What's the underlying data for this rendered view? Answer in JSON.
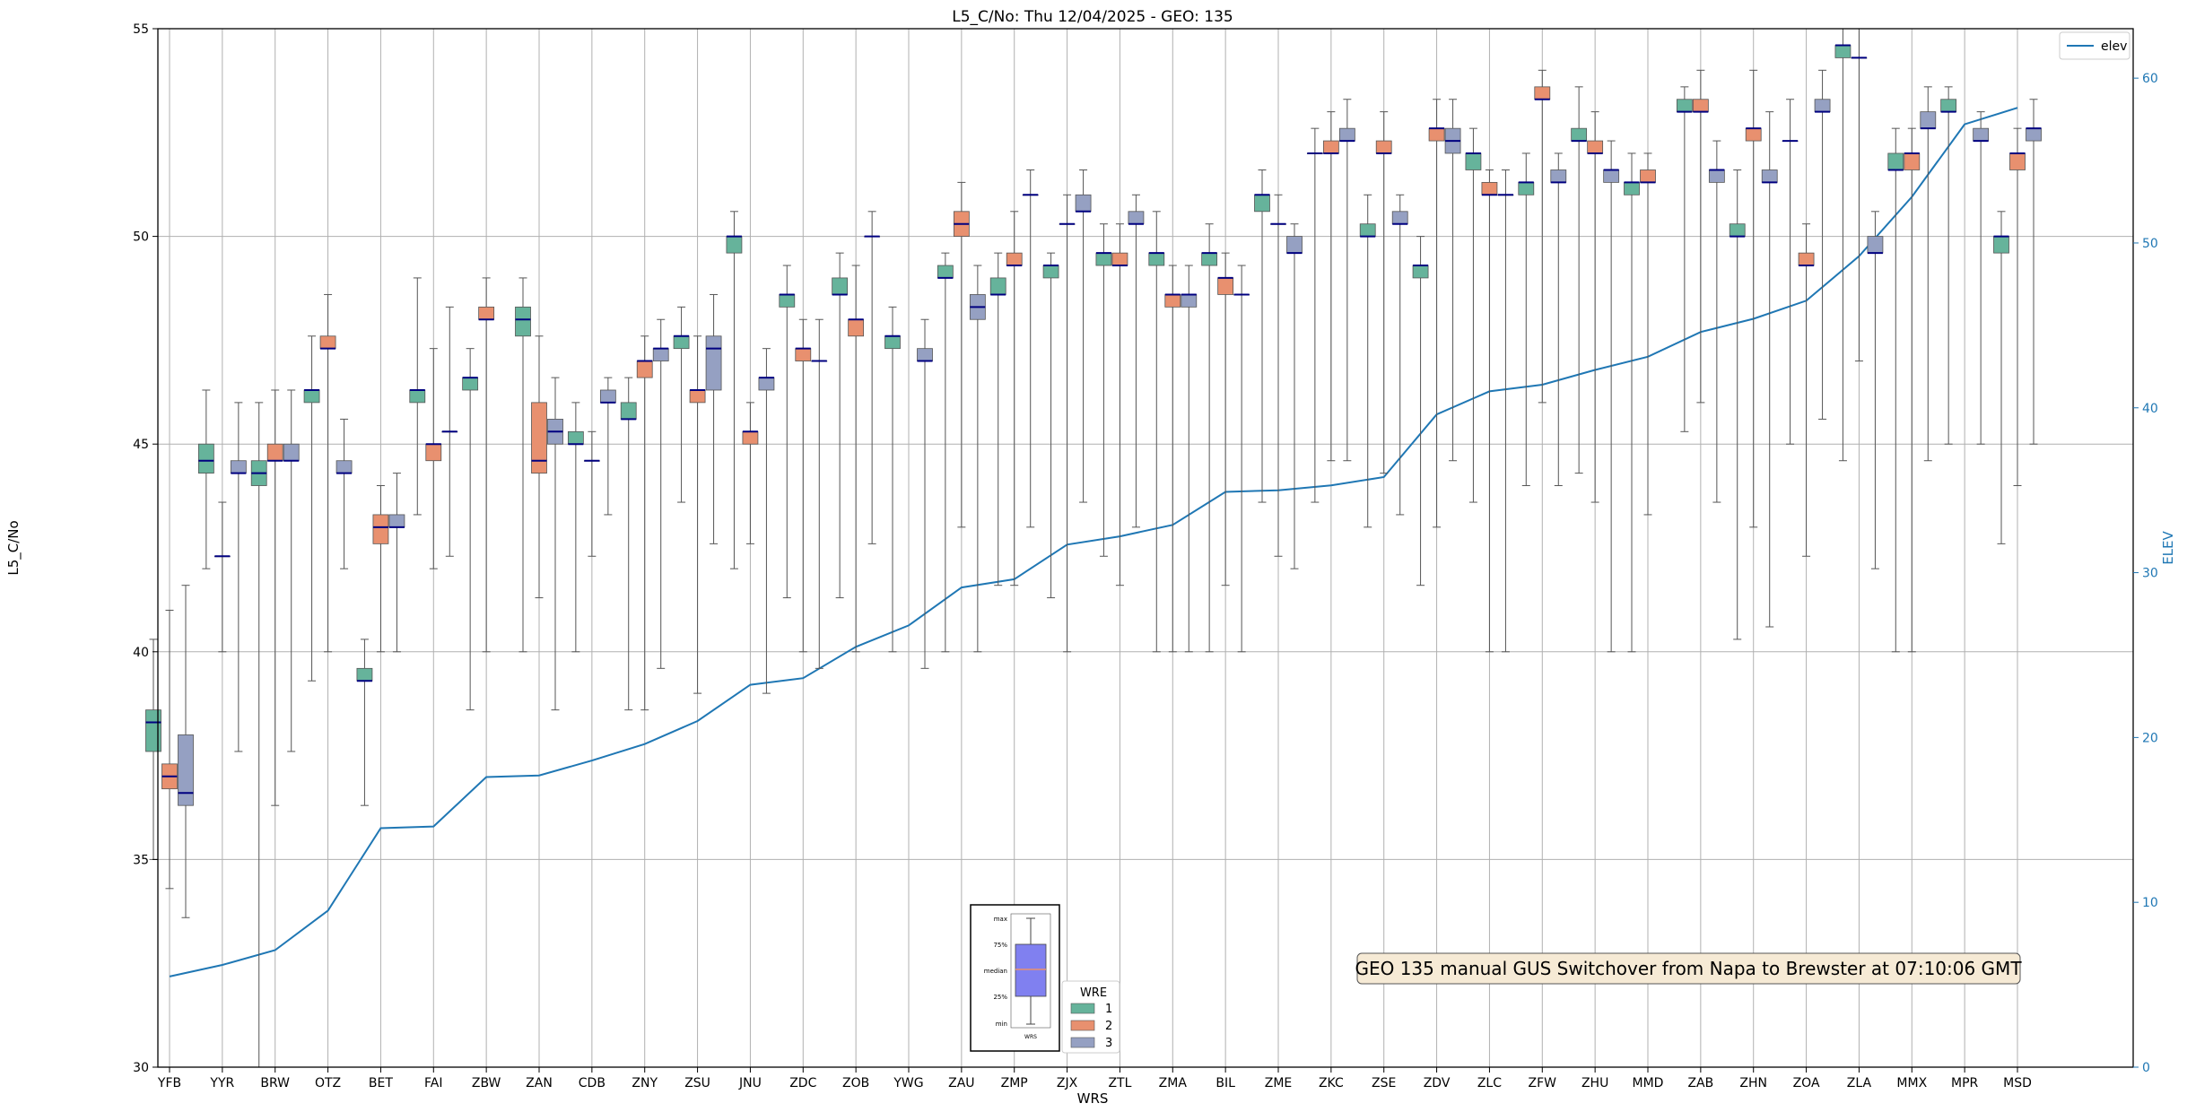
{
  "chart_data": {
    "type": "box",
    "title": "L5_C/No: Thu 12/04/2025 - GEO: 135",
    "xlabel": "WRS",
    "ylabel": "L5_C/No",
    "y2label": "ELEV",
    "ylim": [
      30,
      55
    ],
    "y2lim": [
      0,
      63
    ],
    "yticks": [
      30,
      35,
      40,
      45,
      50,
      55
    ],
    "y2ticks": [
      0,
      10,
      20,
      30,
      40,
      50,
      60
    ],
    "grid": true,
    "legend_position": "top-right",
    "line_legend": "elev",
    "wre_legend_title": "WRE",
    "wre_series": [
      {
        "name": "1",
        "color": "#66b39b"
      },
      {
        "name": "2",
        "color": "#e8906f"
      },
      {
        "name": "3",
        "color": "#95a0c2"
      }
    ],
    "median_color": "#000080",
    "line_color": "#1f77b4",
    "categories": [
      "YFB",
      "YYR",
      "BRW",
      "OTZ",
      "BET",
      "FAI",
      "ZBW",
      "ZAN",
      "CDB",
      "ZNY",
      "ZSU",
      "JNU",
      "ZDC",
      "ZOB",
      "YWG",
      "ZAU",
      "ZMP",
      "ZJX",
      "ZTL",
      "ZMA",
      "BIL",
      "ZME",
      "ZKC",
      "ZSE",
      "ZDV",
      "ZLC",
      "ZFW",
      "ZHU",
      "MMD",
      "ZAB",
      "ZHN",
      "ZOA",
      "ZLA",
      "MMX",
      "MPR",
      "MSD"
    ],
    "elev": [
      5.5,
      6.2,
      7.1,
      9.5,
      14.5,
      14.6,
      17.6,
      17.7,
      18.6,
      19.6,
      21.0,
      23.2,
      23.6,
      25.5,
      26.8,
      29.1,
      29.6,
      31.7,
      32.2,
      32.9,
      34.9,
      35.0,
      35.3,
      35.8,
      39.6,
      41.0,
      41.4,
      42.3,
      43.1,
      44.6,
      45.4,
      46.5,
      49.2,
      52.8,
      57.2,
      58.2
    ],
    "boxes": [
      {
        "cat": "YFB",
        "wre": "1",
        "min": 35.0,
        "q1": 37.6,
        "median": 38.3,
        "q3": 38.6,
        "max": 40.3
      },
      {
        "cat": "YFB",
        "wre": "2",
        "min": 34.3,
        "q1": 36.7,
        "median": 37.0,
        "q3": 37.3,
        "max": 41.0
      },
      {
        "cat": "YFB",
        "wre": "3",
        "min": 33.6,
        "q1": 36.3,
        "median": 36.6,
        "q3": 38.0,
        "max": 41.6
      },
      {
        "cat": "YYR",
        "wre": "1",
        "min": 42.0,
        "q1": 44.3,
        "median": 44.6,
        "q3": 45.0,
        "max": 46.3
      },
      {
        "cat": "YYR",
        "wre": "2",
        "min": 40.0,
        "q1": 42.3,
        "median": 42.3,
        "q3": 42.3,
        "max": 43.6
      },
      {
        "cat": "YYR",
        "wre": "3",
        "min": 37.6,
        "q1": 44.3,
        "median": 44.3,
        "q3": 44.6,
        "max": 46.0
      },
      {
        "cat": "BRW",
        "wre": "1",
        "min": 30.0,
        "q1": 44.0,
        "median": 44.3,
        "q3": 44.6,
        "max": 46.0
      },
      {
        "cat": "BRW",
        "wre": "2",
        "min": 36.3,
        "q1": 44.6,
        "median": 44.6,
        "q3": 45.0,
        "max": 46.3
      },
      {
        "cat": "BRW",
        "wre": "3",
        "min": 37.6,
        "q1": 44.6,
        "median": 44.6,
        "q3": 45.0,
        "max": 46.3
      },
      {
        "cat": "OTZ",
        "wre": "1",
        "min": 39.3,
        "q1": 46.0,
        "median": 46.3,
        "q3": 46.3,
        "max": 47.6
      },
      {
        "cat": "OTZ",
        "wre": "2",
        "min": 40.0,
        "q1": 47.3,
        "median": 47.3,
        "q3": 47.6,
        "max": 48.6
      },
      {
        "cat": "OTZ",
        "wre": "3",
        "min": 42.0,
        "q1": 44.3,
        "median": 44.3,
        "q3": 44.6,
        "max": 45.6
      },
      {
        "cat": "BET",
        "wre": "1",
        "min": 36.3,
        "q1": 39.3,
        "median": 39.3,
        "q3": 39.6,
        "max": 40.3
      },
      {
        "cat": "BET",
        "wre": "2",
        "min": 40.0,
        "q1": 42.6,
        "median": 43.0,
        "q3": 43.3,
        "max": 44.0
      },
      {
        "cat": "BET",
        "wre": "3",
        "min": 40.0,
        "q1": 43.0,
        "median": 43.0,
        "q3": 43.3,
        "max": 44.3
      },
      {
        "cat": "FAI",
        "wre": "1",
        "min": 43.3,
        "q1": 46.0,
        "median": 46.3,
        "q3": 46.3,
        "max": 49.0
      },
      {
        "cat": "FAI",
        "wre": "2",
        "min": 42.0,
        "q1": 44.6,
        "median": 45.0,
        "q3": 45.0,
        "max": 47.3
      },
      {
        "cat": "FAI",
        "wre": "3",
        "min": 42.3,
        "q1": 45.3,
        "median": 45.3,
        "q3": 45.3,
        "max": 48.3
      },
      {
        "cat": "ZBW",
        "wre": "1",
        "min": 38.6,
        "q1": 46.3,
        "median": 46.6,
        "q3": 46.6,
        "max": 47.3
      },
      {
        "cat": "ZBW",
        "wre": "2",
        "min": 40.0,
        "q1": 48.0,
        "median": 48.0,
        "q3": 48.3,
        "max": 49.0
      },
      {
        "cat": "ZAN",
        "wre": "1",
        "min": 40.0,
        "q1": 47.6,
        "median": 48.0,
        "q3": 48.3,
        "max": 49.0
      },
      {
        "cat": "ZAN",
        "wre": "2",
        "min": 41.3,
        "q1": 44.3,
        "median": 44.6,
        "q3": 46.0,
        "max": 47.6
      },
      {
        "cat": "ZAN",
        "wre": "3",
        "min": 38.6,
        "q1": 45.0,
        "median": 45.3,
        "q3": 45.6,
        "max": 46.6
      },
      {
        "cat": "CDB",
        "wre": "1",
        "min": 40.0,
        "q1": 45.0,
        "median": 45.0,
        "q3": 45.3,
        "max": 46.0
      },
      {
        "cat": "CDB",
        "wre": "2",
        "min": 42.3,
        "q1": 44.6,
        "median": 44.6,
        "q3": 44.6,
        "max": 45.3
      },
      {
        "cat": "CDB",
        "wre": "3",
        "min": 43.3,
        "q1": 46.0,
        "median": 46.0,
        "q3": 46.3,
        "max": 46.6
      },
      {
        "cat": "ZNY",
        "wre": "1",
        "min": 38.6,
        "q1": 45.6,
        "median": 45.6,
        "q3": 46.0,
        "max": 46.6
      },
      {
        "cat": "ZNY",
        "wre": "2",
        "min": 38.6,
        "q1": 46.6,
        "median": 47.0,
        "q3": 47.0,
        "max": 47.6
      },
      {
        "cat": "ZNY",
        "wre": "3",
        "min": 39.6,
        "q1": 47.0,
        "median": 47.3,
        "q3": 47.3,
        "max": 48.0
      },
      {
        "cat": "ZSU",
        "wre": "1",
        "min": 43.6,
        "q1": 47.3,
        "median": 47.6,
        "q3": 47.6,
        "max": 48.3
      },
      {
        "cat": "ZSU",
        "wre": "2",
        "min": 39.0,
        "q1": 46.0,
        "median": 46.3,
        "q3": 46.3,
        "max": 47.6
      },
      {
        "cat": "ZSU",
        "wre": "3",
        "min": 42.6,
        "q1": 46.3,
        "median": 47.3,
        "q3": 47.6,
        "max": 48.6
      },
      {
        "cat": "JNU",
        "wre": "1",
        "min": 42.0,
        "q1": 49.6,
        "median": 50.0,
        "q3": 50.0,
        "max": 50.6
      },
      {
        "cat": "JNU",
        "wre": "2",
        "min": 42.6,
        "q1": 45.0,
        "median": 45.3,
        "q3": 45.3,
        "max": 46.0
      },
      {
        "cat": "JNU",
        "wre": "3",
        "min": 39.0,
        "q1": 46.3,
        "median": 46.6,
        "q3": 46.6,
        "max": 47.3
      },
      {
        "cat": "ZDC",
        "wre": "1",
        "min": 41.3,
        "q1": 48.3,
        "median": 48.6,
        "q3": 48.6,
        "max": 49.3
      },
      {
        "cat": "ZDC",
        "wre": "2",
        "min": 40.0,
        "q1": 47.0,
        "median": 47.3,
        "q3": 47.3,
        "max": 48.0
      },
      {
        "cat": "ZDC",
        "wre": "3",
        "min": 39.6,
        "q1": 47.0,
        "median": 47.0,
        "q3": 47.0,
        "max": 48.0
      },
      {
        "cat": "ZOB",
        "wre": "1",
        "min": 41.3,
        "q1": 48.6,
        "median": 48.6,
        "q3": 49.0,
        "max": 49.6
      },
      {
        "cat": "ZOB",
        "wre": "2",
        "min": 40.0,
        "q1": 47.6,
        "median": 48.0,
        "q3": 48.0,
        "max": 49.3
      },
      {
        "cat": "ZOB",
        "wre": "3",
        "min": 42.6,
        "q1": 50.0,
        "median": 50.0,
        "q3": 50.0,
        "max": 50.6
      },
      {
        "cat": "YWG",
        "wre": "1",
        "min": 40.0,
        "q1": 47.3,
        "median": 47.6,
        "q3": 47.6,
        "max": 48.3
      },
      {
        "cat": "YWG",
        "wre": "3",
        "min": 39.6,
        "q1": 47.0,
        "median": 47.0,
        "q3": 47.3,
        "max": 48.0
      },
      {
        "cat": "ZAU",
        "wre": "1",
        "min": 40.0,
        "q1": 49.0,
        "median": 49.0,
        "q3": 49.3,
        "max": 49.6
      },
      {
        "cat": "ZAU",
        "wre": "2",
        "min": 43.0,
        "q1": 50.0,
        "median": 50.3,
        "q3": 50.6,
        "max": 51.3
      },
      {
        "cat": "ZAU",
        "wre": "3",
        "min": 40.0,
        "q1": 48.0,
        "median": 48.3,
        "q3": 48.6,
        "max": 49.3
      },
      {
        "cat": "ZMP",
        "wre": "1",
        "min": 41.6,
        "q1": 48.6,
        "median": 48.6,
        "q3": 49.0,
        "max": 49.6
      },
      {
        "cat": "ZMP",
        "wre": "2",
        "min": 41.6,
        "q1": 49.3,
        "median": 49.3,
        "q3": 49.6,
        "max": 50.6
      },
      {
        "cat": "ZMP",
        "wre": "3",
        "min": 43.0,
        "q1": 51.0,
        "median": 51.0,
        "q3": 51.0,
        "max": 51.6
      },
      {
        "cat": "ZJX",
        "wre": "1",
        "min": 41.3,
        "q1": 49.0,
        "median": 49.3,
        "q3": 49.3,
        "max": 49.6
      },
      {
        "cat": "ZJX",
        "wre": "2",
        "min": 40.0,
        "q1": 50.3,
        "median": 50.3,
        "q3": 50.3,
        "max": 51.0
      },
      {
        "cat": "ZJX",
        "wre": "3",
        "min": 43.6,
        "q1": 50.6,
        "median": 50.6,
        "q3": 51.0,
        "max": 51.6
      },
      {
        "cat": "ZTL",
        "wre": "1",
        "min": 42.3,
        "q1": 49.3,
        "median": 49.6,
        "q3": 49.6,
        "max": 50.3
      },
      {
        "cat": "ZTL",
        "wre": "2",
        "min": 41.6,
        "q1": 49.3,
        "median": 49.3,
        "q3": 49.6,
        "max": 50.3
      },
      {
        "cat": "ZTL",
        "wre": "3",
        "min": 43.0,
        "q1": 50.3,
        "median": 50.3,
        "q3": 50.6,
        "max": 51.0
      },
      {
        "cat": "ZMA",
        "wre": "1",
        "min": 40.0,
        "q1": 49.3,
        "median": 49.6,
        "q3": 49.6,
        "max": 50.6
      },
      {
        "cat": "ZMA",
        "wre": "2",
        "min": 40.0,
        "q1": 48.3,
        "median": 48.6,
        "q3": 48.6,
        "max": 49.3
      },
      {
        "cat": "ZMA",
        "wre": "3",
        "min": 40.0,
        "q1": 48.3,
        "median": 48.6,
        "q3": 48.6,
        "max": 49.3
      },
      {
        "cat": "BIL",
        "wre": "1",
        "min": 40.0,
        "q1": 49.3,
        "median": 49.6,
        "q3": 49.6,
        "max": 50.3
      },
      {
        "cat": "BIL",
        "wre": "2",
        "min": 41.6,
        "q1": 48.6,
        "median": 49.0,
        "q3": 49.0,
        "max": 49.6
      },
      {
        "cat": "BIL",
        "wre": "3",
        "min": 40.0,
        "q1": 48.6,
        "median": 48.6,
        "q3": 48.6,
        "max": 49.3
      },
      {
        "cat": "ZME",
        "wre": "1",
        "min": 43.6,
        "q1": 50.6,
        "median": 51.0,
        "q3": 51.0,
        "max": 51.6
      },
      {
        "cat": "ZME",
        "wre": "2",
        "min": 42.3,
        "q1": 50.3,
        "median": 50.3,
        "q3": 50.3,
        "max": 51.0
      },
      {
        "cat": "ZME",
        "wre": "3",
        "min": 42.0,
        "q1": 49.6,
        "median": 49.6,
        "q3": 50.0,
        "max": 50.3
      },
      {
        "cat": "ZKC",
        "wre": "1",
        "min": 43.6,
        "q1": 52.0,
        "median": 52.0,
        "q3": 52.0,
        "max": 52.6
      },
      {
        "cat": "ZKC",
        "wre": "2",
        "min": 44.6,
        "q1": 52.0,
        "median": 52.0,
        "q3": 52.3,
        "max": 53.0
      },
      {
        "cat": "ZKC",
        "wre": "3",
        "min": 44.6,
        "q1": 52.3,
        "median": 52.3,
        "q3": 52.6,
        "max": 53.3
      },
      {
        "cat": "ZSE",
        "wre": "1",
        "min": 43.0,
        "q1": 50.0,
        "median": 50.0,
        "q3": 50.3,
        "max": 51.0
      },
      {
        "cat": "ZSE",
        "wre": "2",
        "min": 44.3,
        "q1": 52.0,
        "median": 52.0,
        "q3": 52.3,
        "max": 53.0
      },
      {
        "cat": "ZSE",
        "wre": "3",
        "min": 43.3,
        "q1": 50.3,
        "median": 50.3,
        "q3": 50.6,
        "max": 51.0
      },
      {
        "cat": "ZDV",
        "wre": "1",
        "min": 41.6,
        "q1": 49.0,
        "median": 49.3,
        "q3": 49.3,
        "max": 50.0
      },
      {
        "cat": "ZDV",
        "wre": "2",
        "min": 43.0,
        "q1": 52.3,
        "median": 52.6,
        "q3": 52.6,
        "max": 53.3
      },
      {
        "cat": "ZDV",
        "wre": "3",
        "min": 44.6,
        "q1": 52.0,
        "median": 52.3,
        "q3": 52.6,
        "max": 53.3
      },
      {
        "cat": "ZLC",
        "wre": "1",
        "min": 43.6,
        "q1": 51.6,
        "median": 52.0,
        "q3": 52.0,
        "max": 52.6
      },
      {
        "cat": "ZLC",
        "wre": "2",
        "min": 40.0,
        "q1": 51.0,
        "median": 51.0,
        "q3": 51.3,
        "max": 51.6
      },
      {
        "cat": "ZLC",
        "wre": "3",
        "min": 40.0,
        "q1": 51.0,
        "median": 51.0,
        "q3": 51.0,
        "max": 51.6
      },
      {
        "cat": "ZFW",
        "wre": "1",
        "min": 44.0,
        "q1": 51.0,
        "median": 51.3,
        "q3": 51.3,
        "max": 52.0
      },
      {
        "cat": "ZFW",
        "wre": "2",
        "min": 46.0,
        "q1": 53.3,
        "median": 53.3,
        "q3": 53.6,
        "max": 54.0
      },
      {
        "cat": "ZFW",
        "wre": "3",
        "min": 44.0,
        "q1": 51.3,
        "median": 51.3,
        "q3": 51.6,
        "max": 52.0
      },
      {
        "cat": "ZHU",
        "wre": "1",
        "min": 44.3,
        "q1": 52.3,
        "median": 52.3,
        "q3": 52.6,
        "max": 53.6
      },
      {
        "cat": "ZHU",
        "wre": "2",
        "min": 43.6,
        "q1": 52.0,
        "median": 52.0,
        "q3": 52.3,
        "max": 53.0
      },
      {
        "cat": "ZHU",
        "wre": "3",
        "min": 40.0,
        "q1": 51.3,
        "median": 51.6,
        "q3": 51.6,
        "max": 52.3
      },
      {
        "cat": "MMD",
        "wre": "1",
        "min": 40.0,
        "q1": 51.0,
        "median": 51.3,
        "q3": 51.3,
        "max": 52.0
      },
      {
        "cat": "MMD",
        "wre": "2",
        "min": 43.3,
        "q1": 51.3,
        "median": 51.3,
        "q3": 51.6,
        "max": 52.0
      },
      {
        "cat": "ZAB",
        "wre": "1",
        "min": 45.3,
        "q1": 53.0,
        "median": 53.0,
        "q3": 53.3,
        "max": 53.6
      },
      {
        "cat": "ZAB",
        "wre": "2",
        "min": 46.0,
        "q1": 53.0,
        "median": 53.0,
        "q3": 53.3,
        "max": 54.0
      },
      {
        "cat": "ZAB",
        "wre": "3",
        "min": 43.6,
        "q1": 51.3,
        "median": 51.6,
        "q3": 51.6,
        "max": 52.3
      },
      {
        "cat": "ZHN",
        "wre": "1",
        "min": 40.3,
        "q1": 50.0,
        "median": 50.0,
        "q3": 50.3,
        "max": 51.6
      },
      {
        "cat": "ZHN",
        "wre": "2",
        "min": 43.0,
        "q1": 52.3,
        "median": 52.6,
        "q3": 52.6,
        "max": 54.0
      },
      {
        "cat": "ZHN",
        "wre": "3",
        "min": 40.6,
        "q1": 51.3,
        "median": 51.3,
        "q3": 51.6,
        "max": 53.0
      },
      {
        "cat": "ZOA",
        "wre": "1",
        "min": 45.0,
        "q1": 52.3,
        "median": 52.3,
        "q3": 52.3,
        "max": 53.3
      },
      {
        "cat": "ZOA",
        "wre": "2",
        "min": 42.3,
        "q1": 49.3,
        "median": 49.3,
        "q3": 49.6,
        "max": 50.3
      },
      {
        "cat": "ZOA",
        "wre": "3",
        "min": 45.6,
        "q1": 53.0,
        "median": 53.0,
        "q3": 53.3,
        "max": 54.0
      },
      {
        "cat": "ZLA",
        "wre": "1",
        "min": 44.6,
        "q1": 54.3,
        "median": 54.6,
        "q3": 54.6,
        "max": 55.0
      },
      {
        "cat": "ZLA",
        "wre": "2",
        "min": 47.0,
        "q1": 54.3,
        "median": 54.3,
        "q3": 54.3,
        "max": 55.0
      },
      {
        "cat": "ZLA",
        "wre": "3",
        "min": 42.0,
        "q1": 49.6,
        "median": 49.6,
        "q3": 50.0,
        "max": 50.6
      },
      {
        "cat": "MMX",
        "wre": "1",
        "min": 40.0,
        "q1": 51.6,
        "median": 51.6,
        "q3": 52.0,
        "max": 52.6
      },
      {
        "cat": "MMX",
        "wre": "2",
        "min": 40.0,
        "q1": 51.6,
        "median": 52.0,
        "q3": 52.0,
        "max": 52.6
      },
      {
        "cat": "MMX",
        "wre": "3",
        "min": 44.6,
        "q1": 52.6,
        "median": 52.6,
        "q3": 53.0,
        "max": 53.6
      },
      {
        "cat": "MPR",
        "wre": "1",
        "min": 45.0,
        "q1": 53.0,
        "median": 53.0,
        "q3": 53.3,
        "max": 53.6
      },
      {
        "cat": "MPR",
        "wre": "3",
        "min": 45.0,
        "q1": 52.3,
        "median": 52.3,
        "q3": 52.6,
        "max": 53.0
      },
      {
        "cat": "MSD",
        "wre": "1",
        "min": 42.6,
        "q1": 49.6,
        "median": 50.0,
        "q3": 50.0,
        "max": 50.6
      },
      {
        "cat": "MSD",
        "wre": "2",
        "min": 44.0,
        "q1": 51.6,
        "median": 52.0,
        "q3": 52.0,
        "max": 52.6
      },
      {
        "cat": "MSD",
        "wre": "3",
        "min": 45.0,
        "q1": 52.3,
        "median": 52.6,
        "q3": 52.6,
        "max": 53.3
      }
    ],
    "annotation": "GEO 135 manual GUS Switchover from Napa to Brewster at 07:10:06 GMT",
    "inset_legend": {
      "labels": [
        "max",
        "75%",
        "median",
        "25%",
        "min"
      ],
      "caption": "WRS",
      "box_color": "#8080f0",
      "median_color": "#e8906f"
    }
  }
}
